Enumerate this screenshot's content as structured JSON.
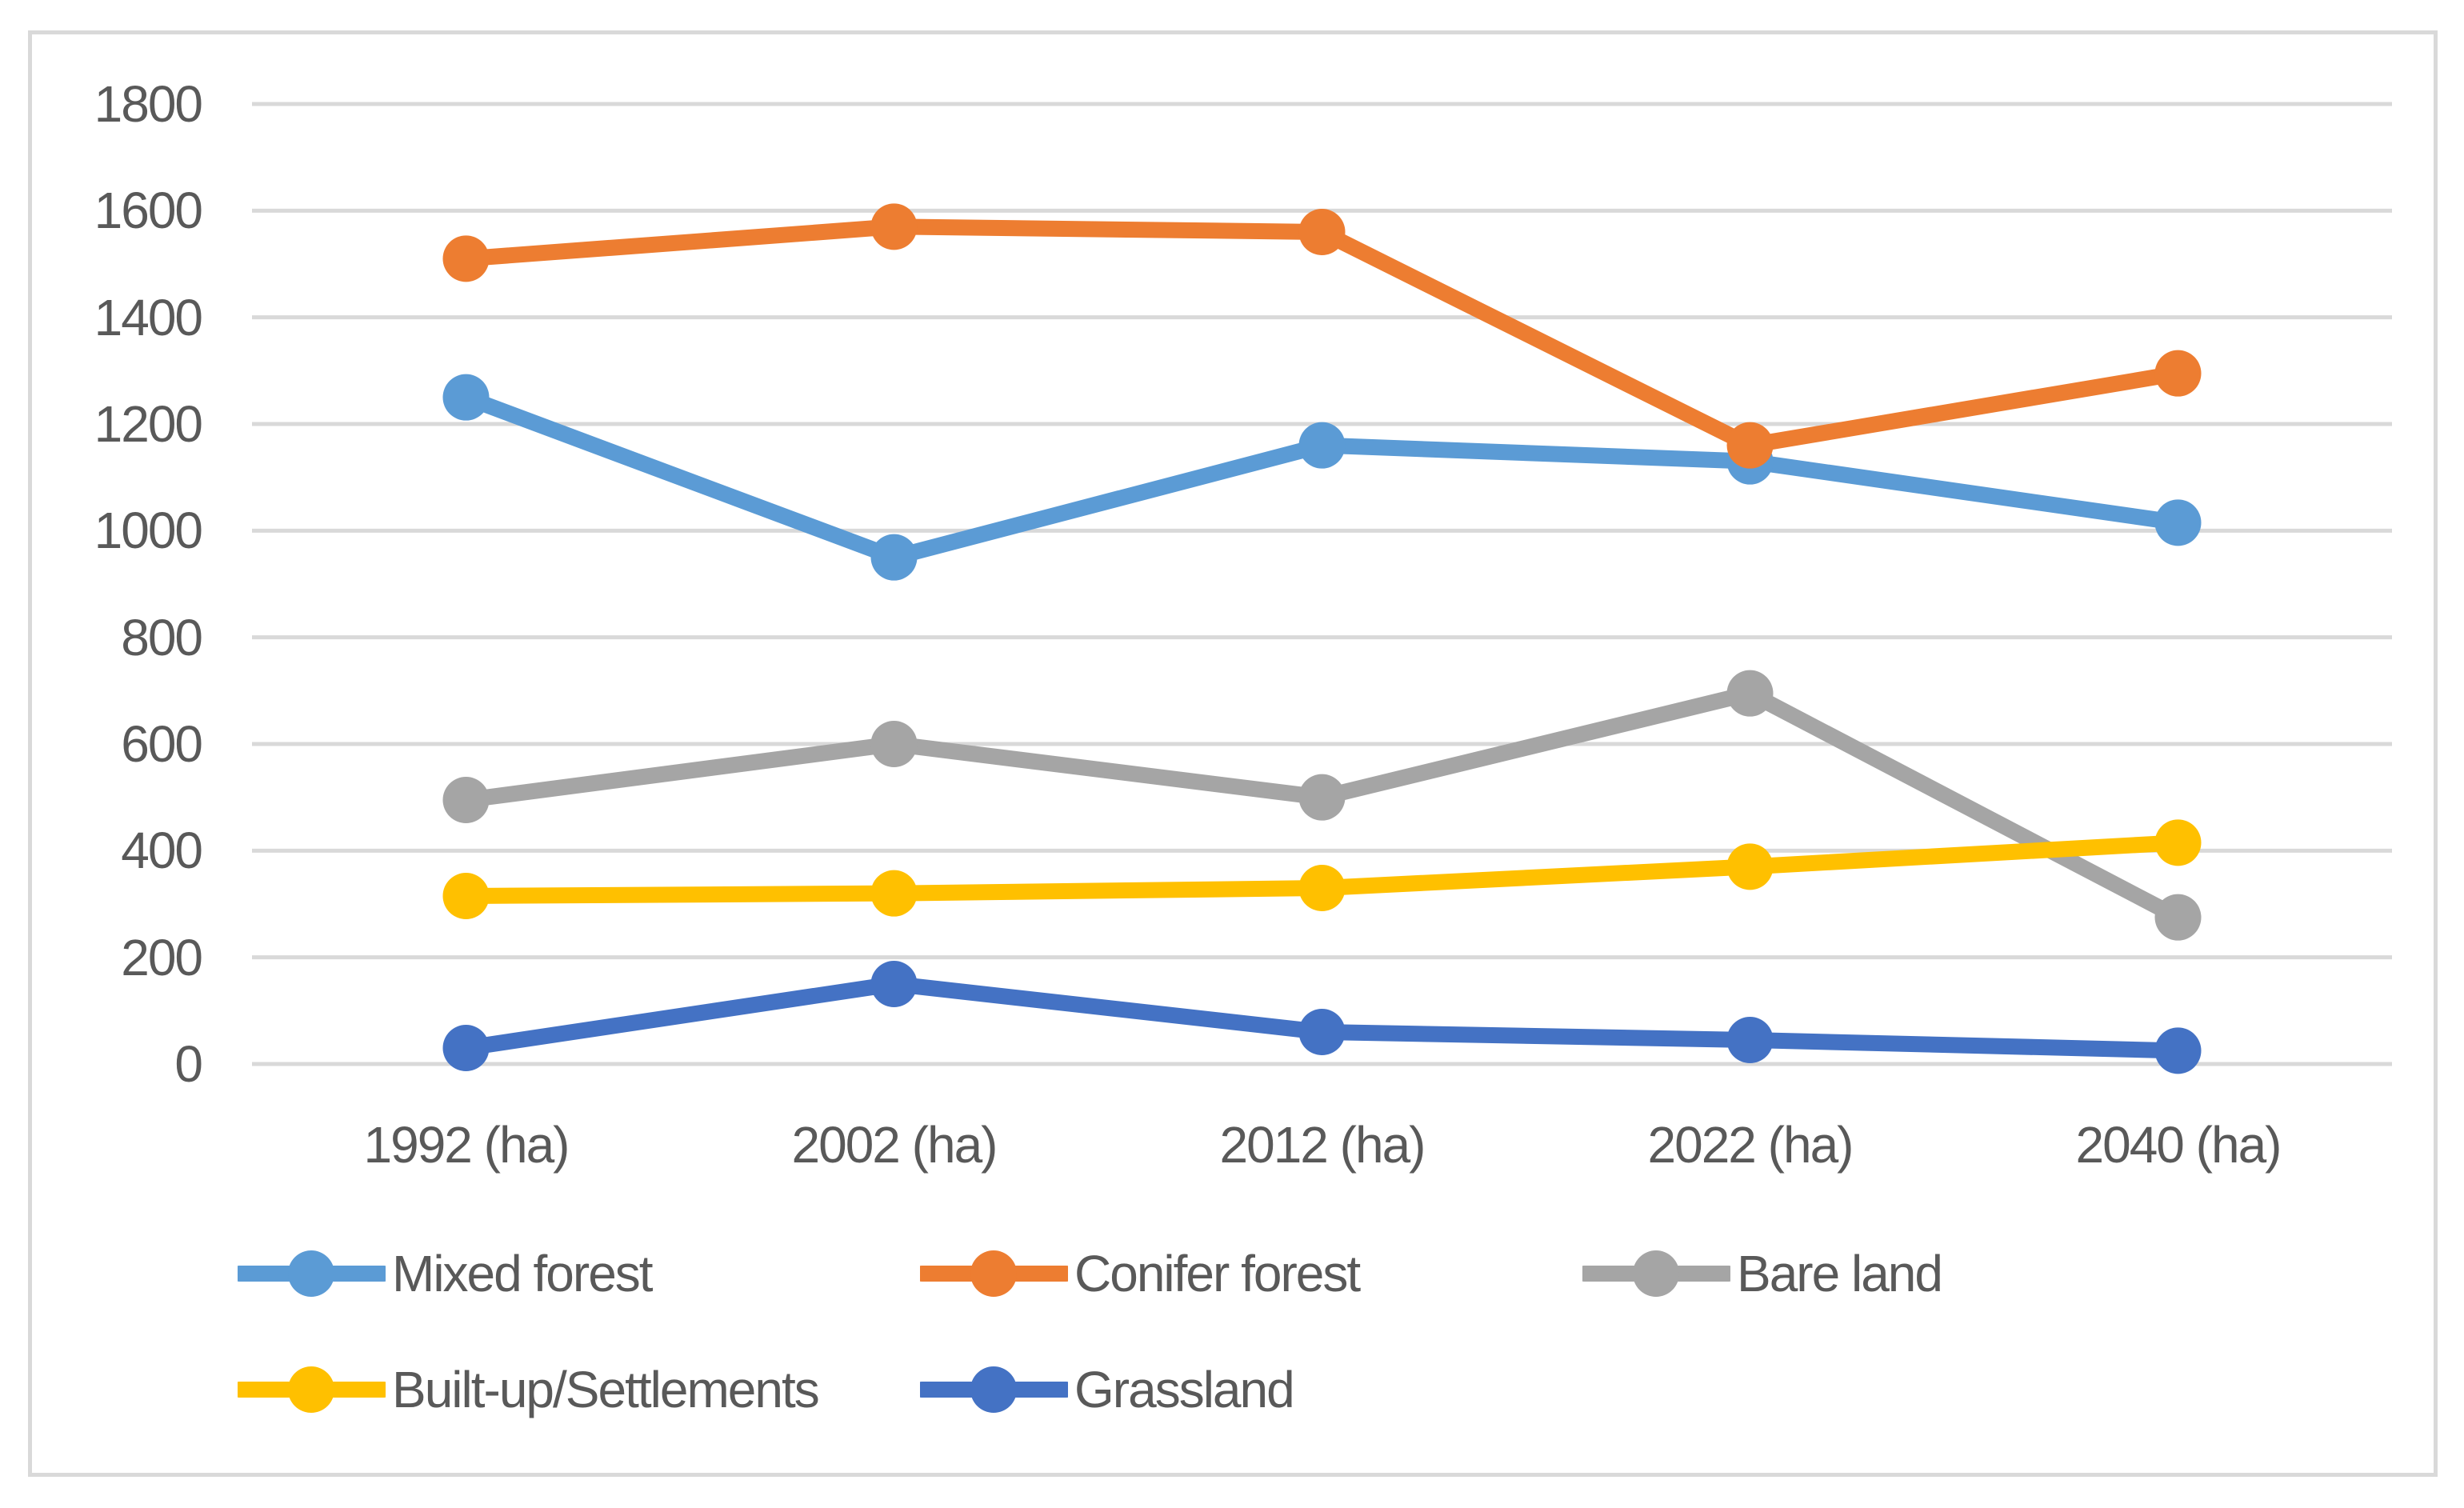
{
  "chart_data": {
    "type": "line",
    "title": "",
    "xlabel": "",
    "ylabel": "",
    "categories": [
      "1992 (ha)",
      "2002 (ha)",
      "2012 (ha)",
      "2022 (ha)",
      "2040 (ha)"
    ],
    "series": [
      {
        "name": "Mixed forest",
        "color": "#5B9BD5",
        "values": [
          1250,
          950,
          1160,
          1130,
          1015
        ]
      },
      {
        "name": "Conifer forest",
        "color": "#ED7D31",
        "values": [
          1510,
          1570,
          1560,
          1160,
          1295
        ]
      },
      {
        "name": "Bare land",
        "color": "#A5A5A5",
        "values": [
          495,
          600,
          500,
          695,
          275
        ]
      },
      {
        "name": "Built-up/Settlements",
        "color": "#FFC000",
        "values": [
          315,
          320,
          330,
          370,
          415
        ]
      },
      {
        "name": "Grassland",
        "color": "#4472C4",
        "values": [
          30,
          150,
          60,
          45,
          25
        ]
      }
    ],
    "ylim": [
      0,
      1800
    ],
    "y_ticks": [
      0,
      200,
      400,
      600,
      800,
      1000,
      1200,
      1400,
      1600,
      1800
    ],
    "grid": true,
    "legend_position": "bottom",
    "legend_rows": [
      [
        "Mixed forest",
        "Conifer forest",
        "Bare land"
      ],
      [
        "Built-up/Settlements",
        "Grassland"
      ]
    ]
  },
  "styles": {
    "background": "#FFFFFF",
    "frame_border_color": "#D9D9D9",
    "gridline_color": "#D9D9D9",
    "text_color": "#595959"
  }
}
